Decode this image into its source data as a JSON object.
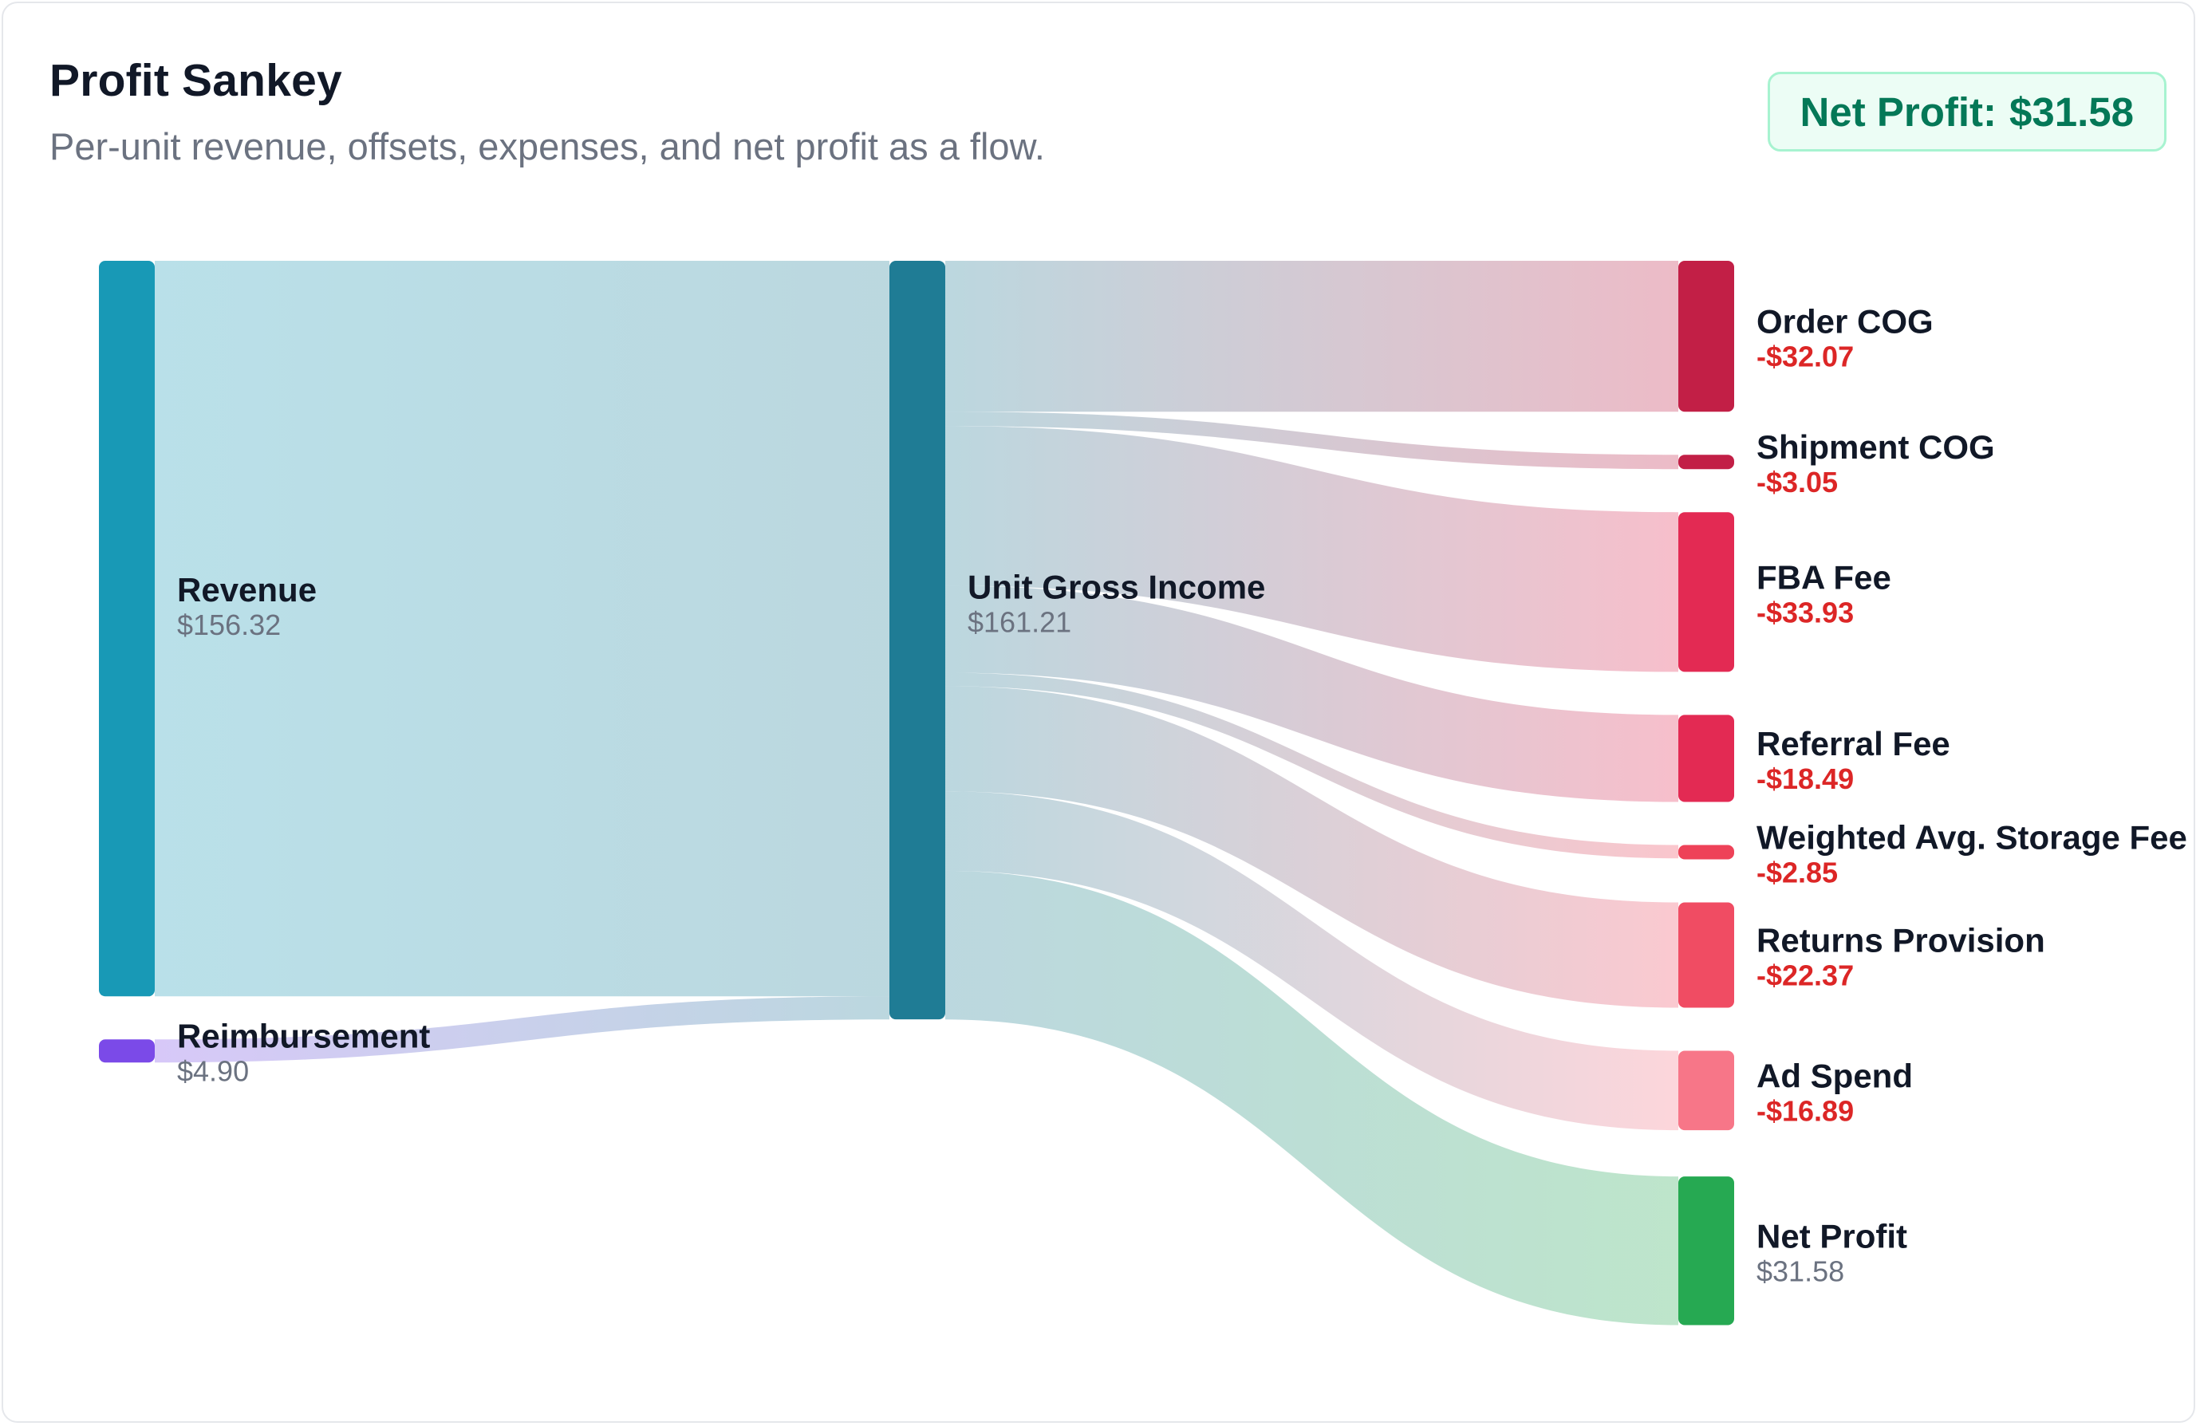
{
  "header": {
    "title": "Profit Sankey",
    "subtitle": "Per-unit revenue, offsets, expenses, and net profit as a flow."
  },
  "badge": {
    "label": "Net Profit:",
    "value": "$31.58"
  },
  "colors": {
    "revenue": "#1899b6",
    "reimbursement": "#7b4ae8",
    "gross": "#1f7c95",
    "order_cog": "#c21f46",
    "shipment_cog": "#c21f46",
    "fba_fee": "#e32a53",
    "referral_fee": "#e32a53",
    "storage_fee": "#ee4258",
    "returns_provision": "#f04c63",
    "ad_spend": "#f77688",
    "net_profit": "#26a952",
    "expense_text": "#dc2626",
    "neutral_text": "#6b7280"
  },
  "chart_data": {
    "type": "sankey",
    "title": "Profit Sankey",
    "nodes": [
      {
        "id": "revenue",
        "label": "Revenue",
        "display": "$156.32",
        "value": 156.32,
        "kind": "source"
      },
      {
        "id": "reimbursement",
        "label": "Reimbursement",
        "display": "$4.90",
        "value": 4.9,
        "kind": "source"
      },
      {
        "id": "gross",
        "label": "Unit Gross Income",
        "display": "$161.21",
        "value": 161.21,
        "kind": "hub"
      },
      {
        "id": "order_cog",
        "label": "Order COG",
        "display": "-$32.07",
        "value": 32.07,
        "kind": "expense"
      },
      {
        "id": "shipment_cog",
        "label": "Shipment COG",
        "display": "-$3.05",
        "value": 3.05,
        "kind": "expense"
      },
      {
        "id": "fba_fee",
        "label": "FBA Fee",
        "display": "-$33.93",
        "value": 33.93,
        "kind": "expense"
      },
      {
        "id": "referral_fee",
        "label": "Referral Fee",
        "display": "-$18.49",
        "value": 18.49,
        "kind": "expense"
      },
      {
        "id": "storage_fee",
        "label": "Weighted Avg. Storage Fee",
        "display": "-$2.85",
        "value": 2.85,
        "kind": "expense"
      },
      {
        "id": "returns_provision",
        "label": "Returns Provision",
        "display": "-$22.37",
        "value": 22.37,
        "kind": "expense"
      },
      {
        "id": "ad_spend",
        "label": "Ad Spend",
        "display": "-$16.89",
        "value": 16.89,
        "kind": "expense"
      },
      {
        "id": "net_profit",
        "label": "Net Profit",
        "display": "$31.58",
        "value": 31.58,
        "kind": "profit"
      }
    ],
    "links": [
      {
        "source": "revenue",
        "target": "gross",
        "value": 156.32
      },
      {
        "source": "reimbursement",
        "target": "gross",
        "value": 4.9
      },
      {
        "source": "gross",
        "target": "order_cog",
        "value": 32.07
      },
      {
        "source": "gross",
        "target": "shipment_cog",
        "value": 3.05
      },
      {
        "source": "gross",
        "target": "fba_fee",
        "value": 33.93
      },
      {
        "source": "gross",
        "target": "referral_fee",
        "value": 18.49
      },
      {
        "source": "gross",
        "target": "storage_fee",
        "value": 2.85
      },
      {
        "source": "gross",
        "target": "returns_provision",
        "value": 22.37
      },
      {
        "source": "gross",
        "target": "ad_spend",
        "value": 16.89
      },
      {
        "source": "gross",
        "target": "net_profit",
        "value": 31.58
      }
    ]
  }
}
